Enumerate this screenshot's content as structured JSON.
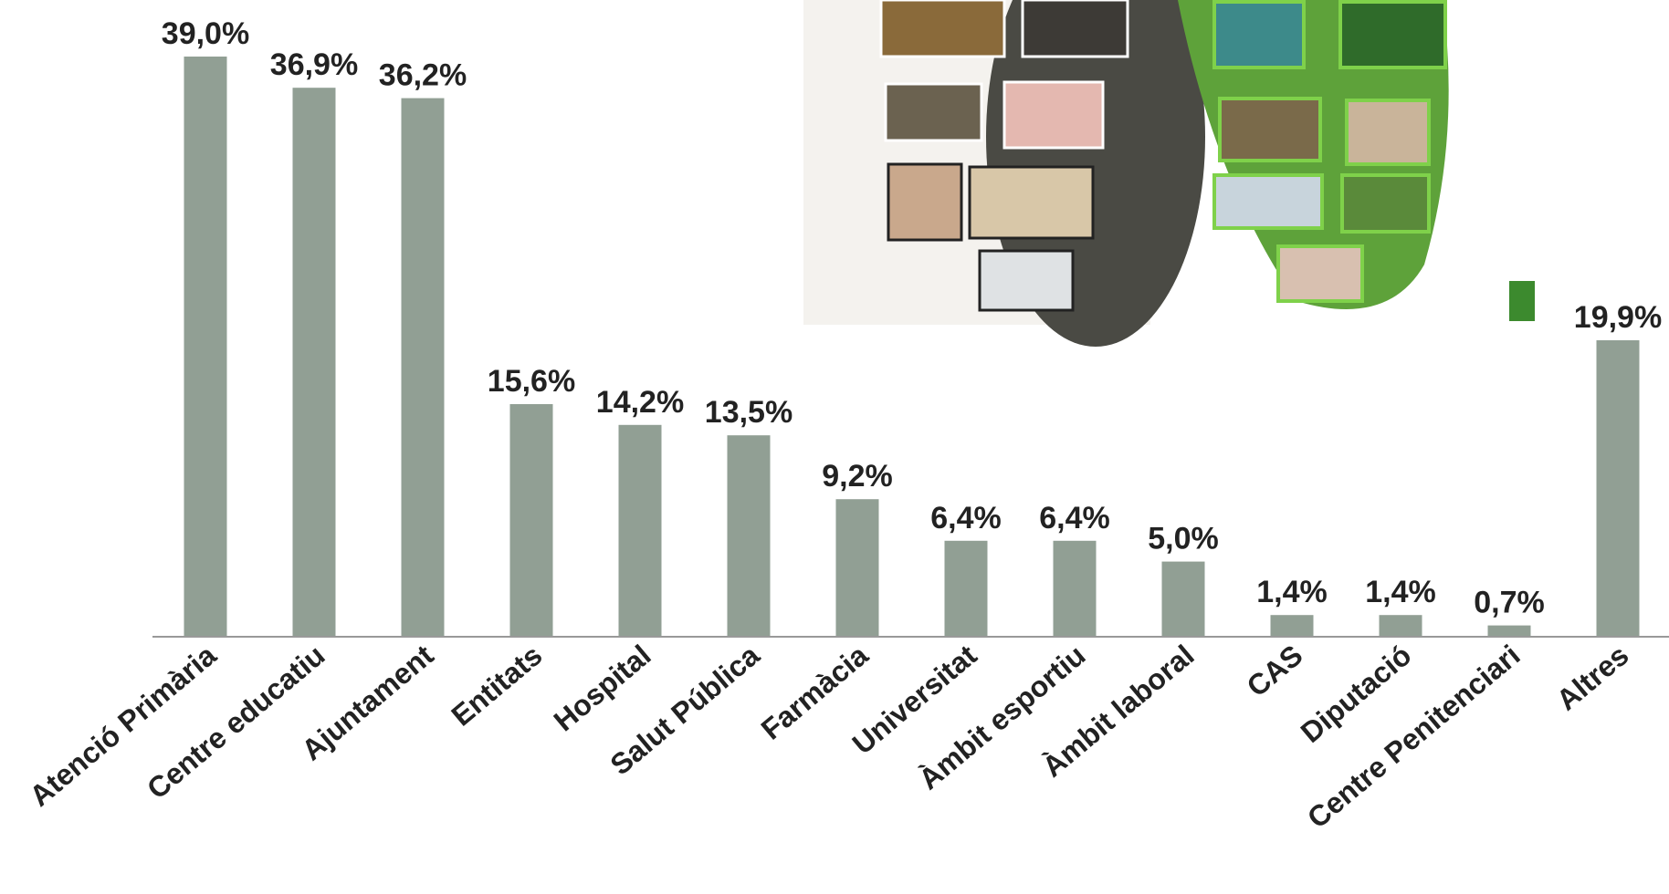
{
  "chart_data": {
    "type": "bar",
    "categories": [
      "Atenció Primària",
      "Centre educatiu",
      "Ajuntament",
      "Entitats",
      "Hospital",
      "Salut Pública",
      "Farmàcia",
      "Universitat",
      "Àmbit esportiu",
      "Àmbit laboral",
      "CAS",
      "Diputació",
      "Centre Penitenciari",
      "Altres"
    ],
    "values": [
      39.0,
      36.9,
      36.2,
      15.6,
      14.2,
      13.5,
      9.2,
      6.4,
      6.4,
      5.0,
      1.4,
      1.4,
      0.7,
      19.9
    ],
    "value_labels": [
      "39,0%",
      "36,9%",
      "36,2%",
      "15,6%",
      "14,2%",
      "13,5%",
      "9,2%",
      "6,4%",
      "6,4%",
      "5,0%",
      "1,4%",
      "1,4%",
      "0,7%",
      "19,9%"
    ],
    "color": "#919f94"
  }
}
